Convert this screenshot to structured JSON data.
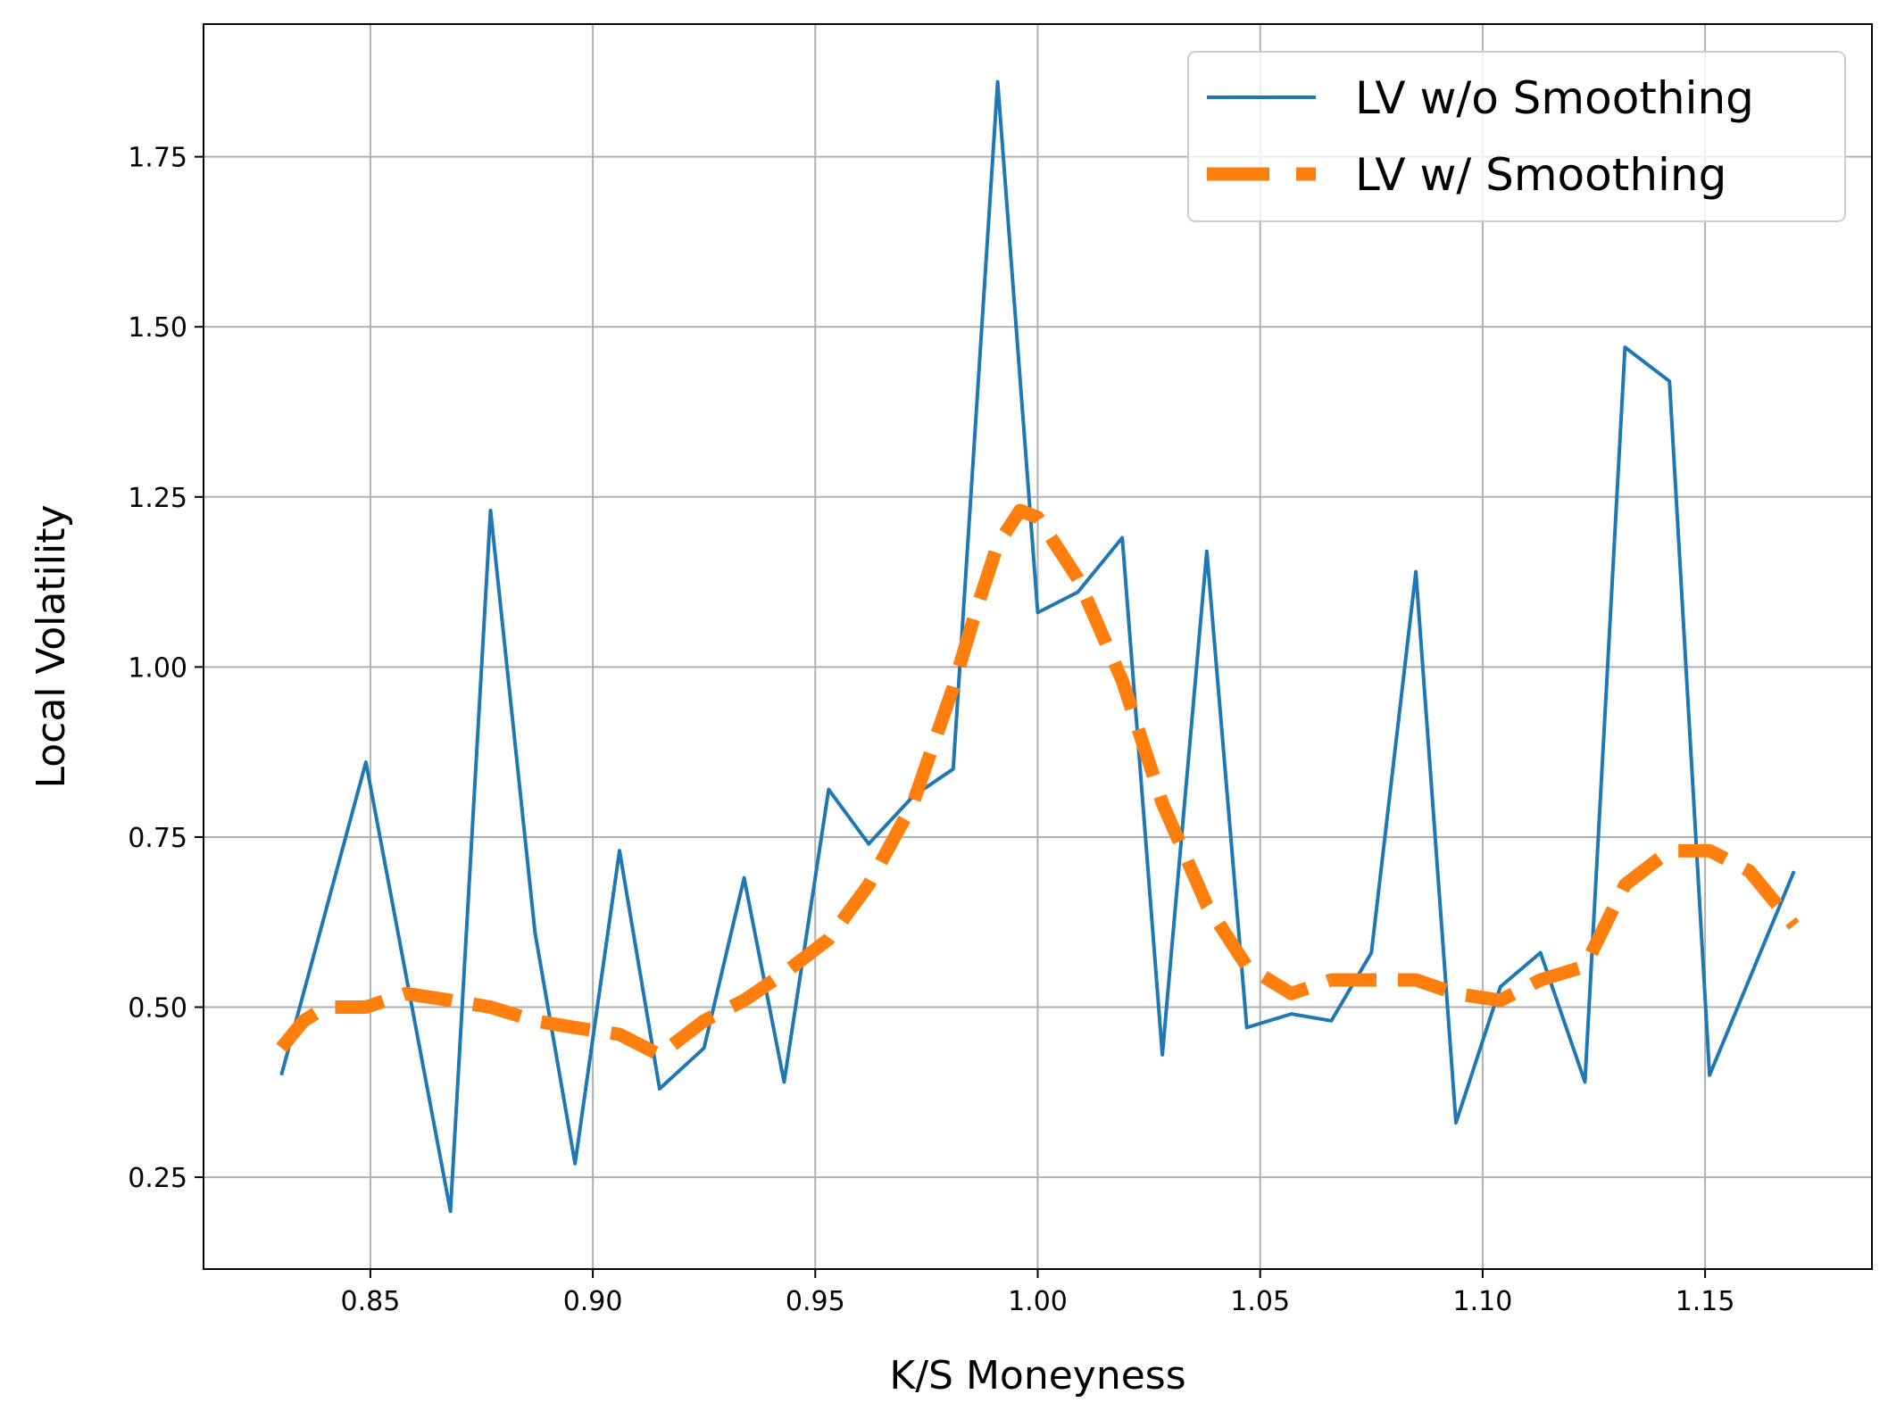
{
  "chart_data": {
    "type": "line",
    "title": "",
    "xlabel": "K/S Moneyness",
    "ylabel": "Local Volatility",
    "xlim": [
      0.8125,
      1.1875
    ],
    "ylim": [
      0.115,
      1.945
    ],
    "x_ticks": [
      0.85,
      0.9,
      0.95,
      1.0,
      1.05,
      1.1,
      1.15
    ],
    "x_tick_labels": [
      "0.85",
      "0.90",
      "0.95",
      "1.00",
      "1.05",
      "1.10",
      "1.15"
    ],
    "y_ticks": [
      0.25,
      0.5,
      0.75,
      1.0,
      1.25,
      1.5,
      1.75
    ],
    "y_tick_labels": [
      "0.25",
      "0.50",
      "0.75",
      "1.00",
      "1.25",
      "1.50",
      "1.75"
    ],
    "grid": true,
    "legend_position": "top-right",
    "series": [
      {
        "name": "LV w/o Smoothing",
        "color": "#1f77b4",
        "style": "solid",
        "x": [
          0.83,
          0.849,
          0.868,
          0.877,
          0.887,
          0.896,
          0.906,
          0.915,
          0.925,
          0.934,
          0.943,
          0.953,
          0.962,
          0.972,
          0.981,
          0.991,
          1.0,
          1.009,
          1.019,
          1.028,
          1.038,
          1.047,
          1.057,
          1.066,
          1.075,
          1.085,
          1.094,
          1.104,
          1.113,
          1.123,
          1.132,
          1.142,
          1.151,
          1.17
        ],
        "y": [
          0.4,
          0.86,
          0.2,
          1.23,
          0.61,
          0.27,
          0.73,
          0.38,
          0.44,
          0.69,
          0.39,
          0.82,
          0.74,
          0.81,
          0.85,
          1.86,
          1.08,
          1.11,
          1.19,
          0.43,
          1.17,
          0.47,
          0.49,
          0.48,
          0.58,
          1.14,
          0.33,
          0.53,
          0.58,
          0.39,
          1.47,
          1.42,
          0.4,
          0.7
        ]
      },
      {
        "name": "LV w/ Smoothing",
        "color": "#ff7f0e",
        "style": "dashed",
        "x": [
          0.83,
          0.835,
          0.84,
          0.849,
          0.858,
          0.868,
          0.877,
          0.887,
          0.896,
          0.906,
          0.915,
          0.925,
          0.934,
          0.943,
          0.953,
          0.962,
          0.972,
          0.981,
          0.986,
          0.991,
          0.996,
          1.0,
          1.009,
          1.019,
          1.028,
          1.038,
          1.047,
          1.057,
          1.066,
          1.075,
          1.085,
          1.094,
          1.104,
          1.113,
          1.123,
          1.132,
          1.142,
          1.151,
          1.16,
          1.17
        ],
        "y": [
          0.44,
          0.48,
          0.5,
          0.5,
          0.52,
          0.51,
          0.5,
          0.48,
          0.47,
          0.46,
          0.43,
          0.48,
          0.51,
          0.55,
          0.6,
          0.68,
          0.8,
          0.97,
          1.08,
          1.18,
          1.23,
          1.22,
          1.13,
          0.98,
          0.8,
          0.65,
          0.56,
          0.52,
          0.54,
          0.54,
          0.54,
          0.52,
          0.51,
          0.54,
          0.56,
          0.68,
          0.73,
          0.73,
          0.7,
          0.62
        ]
      }
    ]
  }
}
